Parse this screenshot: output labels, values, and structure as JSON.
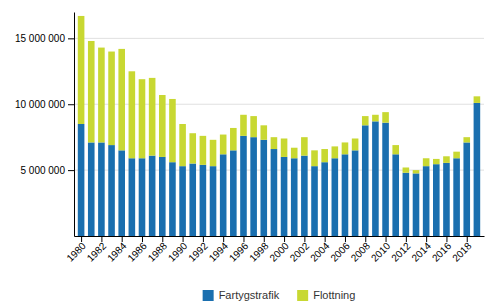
{
  "chart_data": {
    "type": "bar",
    "stacked": true,
    "x": [
      1980,
      1981,
      1982,
      1983,
      1984,
      1985,
      1986,
      1987,
      1988,
      1989,
      1990,
      1991,
      1992,
      1993,
      1994,
      1995,
      1996,
      1997,
      1998,
      1999,
      2000,
      2001,
      2002,
      2003,
      2004,
      2005,
      2006,
      2007,
      2008,
      2009,
      2010,
      2011,
      2012,
      2013,
      2014,
      2015,
      2016,
      2017,
      2018,
      2019
    ],
    "series": [
      {
        "name": "Fartygstrafik",
        "color": "#1a6faf",
        "values": [
          8500000,
          7100000,
          7100000,
          6900000,
          6500000,
          5900000,
          5900000,
          6100000,
          6000000,
          5600000,
          5300000,
          5500000,
          5400000,
          5300000,
          6200000,
          6500000,
          7600000,
          7500000,
          7300000,
          6600000,
          6000000,
          5900000,
          6100000,
          5300000,
          5600000,
          5900000,
          6200000,
          6500000,
          8400000,
          8700000,
          8600000,
          6200000,
          4800000,
          4750000,
          5300000,
          5450000,
          5550000,
          5900000,
          7100000,
          10100000
        ]
      },
      {
        "name": "Flottning",
        "color": "#c8d832",
        "values": [
          8200000,
          7700000,
          7200000,
          7100000,
          7700000,
          6600000,
          6000000,
          5900000,
          4700000,
          4800000,
          3200000,
          2300000,
          2200000,
          2000000,
          1500000,
          1700000,
          1600000,
          1600000,
          1100000,
          900000,
          1400000,
          800000,
          1400000,
          1200000,
          1000000,
          900000,
          900000,
          900000,
          700000,
          500000,
          800000,
          700000,
          400000,
          250000,
          600000,
          400000,
          500000,
          500000,
          400000,
          500000
        ]
      }
    ],
    "xlim": [
      1979.3,
      2019.7
    ],
    "xticks": [
      1980,
      1982,
      1984,
      1986,
      1988,
      1990,
      1992,
      1994,
      1996,
      1998,
      2000,
      2002,
      2004,
      2006,
      2008,
      2010,
      2012,
      2014,
      2016,
      2018
    ],
    "ylim": [
      0,
      17000000
    ],
    "yticks": [
      {
        "value": 5000000,
        "label": "5 000 000"
      },
      {
        "value": 10000000,
        "label": "10 000 000"
      },
      {
        "value": 15000000,
        "label": "15 000 000"
      }
    ],
    "grid": true,
    "legend": "bottom"
  }
}
